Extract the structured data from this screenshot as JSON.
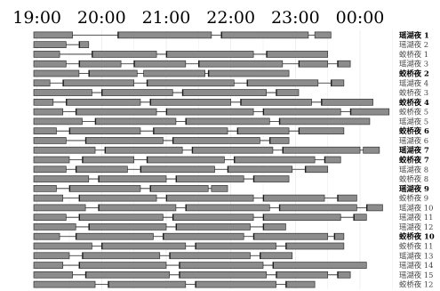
{
  "chart_data": {
    "type": "gantt",
    "x_axis": {
      "ticks": [
        "19:00",
        "20:00",
        "21:00",
        "22:00",
        "23:00",
        "00:00"
      ],
      "range_hours": [
        18.95,
        24.55
      ]
    },
    "colors": {
      "bar": "#8c8c8c",
      "outline": "#333333",
      "grid": "#e2e2e2"
    },
    "rows": [
      {
        "label": "瑶湖夜 1",
        "bold": true,
        "segments": [
          [
            18.95,
            19.55,
            "bar"
          ],
          [
            20.25,
            21.7,
            "bar"
          ],
          [
            21.85,
            23.2,
            "bar"
          ],
          [
            23.3,
            23.55,
            "hatch"
          ]
        ]
      },
      {
        "label": "瑶湖夜 2",
        "bold": false,
        "segments": [
          [
            18.95,
            19.45,
            "bar"
          ],
          [
            19.65,
            19.8,
            "bar"
          ]
        ]
      },
      {
        "label": "蛟桥夜 1",
        "bold": false,
        "segments": [
          [
            18.95,
            19.35,
            "bar"
          ],
          [
            19.85,
            20.85,
            "bar"
          ],
          [
            21.0,
            22.35,
            "bar"
          ],
          [
            22.55,
            23.5,
            "bar"
          ]
        ]
      },
      {
        "label": "瑶湖夜 3",
        "bold": false,
        "segments": [
          [
            18.95,
            19.45,
            "bar"
          ],
          [
            19.65,
            20.3,
            "bar"
          ],
          [
            20.5,
            21.3,
            "bar"
          ],
          [
            21.5,
            22.8,
            "bar"
          ],
          [
            23.05,
            23.5,
            "bar"
          ],
          [
            23.65,
            23.85,
            "bar"
          ]
        ]
      },
      {
        "label": "蛟桥夜 2",
        "bold": true,
        "segments": [
          [
            18.95,
            19.65,
            "bar"
          ],
          [
            19.8,
            20.55,
            "bar"
          ],
          [
            20.65,
            21.6,
            "hatch"
          ],
          [
            21.65,
            22.9,
            "bar"
          ]
        ]
      },
      {
        "label": "瑶湖夜 4",
        "bold": false,
        "segments": [
          [
            18.95,
            19.2,
            "bar"
          ],
          [
            19.4,
            20.5,
            "bar"
          ],
          [
            20.7,
            22.05,
            "bar"
          ],
          [
            22.25,
            23.35,
            "bar"
          ],
          [
            23.55,
            23.75,
            "bar"
          ]
        ]
      },
      {
        "label": "蛟桥夜 3",
        "bold": false,
        "segments": [
          [
            18.95,
            19.85,
            "bar"
          ],
          [
            20.0,
            21.1,
            "bar"
          ],
          [
            21.25,
            22.55,
            "bar"
          ],
          [
            22.7,
            23.05,
            "bar"
          ]
        ]
      },
      {
        "label": "蛟桥夜 4",
        "bold": true,
        "segments": [
          [
            18.95,
            19.25,
            "bar"
          ],
          [
            19.45,
            20.6,
            "bar"
          ],
          [
            20.75,
            22.0,
            "bar"
          ],
          [
            22.15,
            23.25,
            "bar"
          ],
          [
            23.4,
            24.2,
            "bar"
          ]
        ]
      },
      {
        "label": "蛟桥夜 5",
        "bold": false,
        "segments": [
          [
            18.95,
            19.4,
            "bar"
          ],
          [
            19.6,
            20.85,
            "bar"
          ],
          [
            21.0,
            22.35,
            "bar"
          ],
          [
            22.5,
            23.7,
            "bar"
          ],
          [
            23.85,
            24.45,
            "bar"
          ]
        ]
      },
      {
        "label": "瑶湖夜 5",
        "bold": false,
        "segments": [
          [
            18.95,
            19.7,
            "bar"
          ],
          [
            19.9,
            21.15,
            "bar"
          ],
          [
            21.3,
            22.6,
            "bar"
          ],
          [
            22.75,
            24.15,
            "bar"
          ]
        ]
      },
      {
        "label": "蛟桥夜 6",
        "bold": true,
        "segments": [
          [
            18.95,
            19.3,
            "bar"
          ],
          [
            19.5,
            20.6,
            "bar"
          ],
          [
            20.8,
            21.95,
            "bar"
          ],
          [
            22.1,
            22.9,
            "bar"
          ],
          [
            23.05,
            23.75,
            "bar"
          ]
        ]
      },
      {
        "label": "瑶湖夜 6",
        "bold": false,
        "segments": [
          [
            18.95,
            19.45,
            "bar"
          ],
          [
            19.75,
            20.95,
            "bar"
          ],
          [
            21.1,
            22.45,
            "bar"
          ],
          [
            22.6,
            22.9,
            "bar"
          ]
        ]
      },
      {
        "label": "瑶湖夜 7",
        "bold": true,
        "segments": [
          [
            18.95,
            19.9,
            "bar"
          ],
          [
            20.05,
            21.25,
            "bar"
          ],
          [
            21.4,
            22.65,
            "bar"
          ],
          [
            22.8,
            24.0,
            "bar"
          ],
          [
            24.05,
            24.3,
            "hatch"
          ]
        ]
      },
      {
        "label": "蛟桥夜 7",
        "bold": true,
        "segments": [
          [
            18.95,
            19.5,
            "bar"
          ],
          [
            19.7,
            20.5,
            "bar"
          ],
          [
            20.7,
            21.9,
            "bar"
          ],
          [
            22.05,
            23.3,
            "bar"
          ],
          [
            23.45,
            23.7,
            "bar"
          ]
        ]
      },
      {
        "label": "瑶湖夜 8",
        "bold": false,
        "segments": [
          [
            18.95,
            19.45,
            "bar"
          ],
          [
            19.6,
            20.4,
            "bar"
          ],
          [
            20.6,
            21.75,
            "bar"
          ],
          [
            21.95,
            22.95,
            "bar"
          ],
          [
            23.15,
            23.5,
            "bar"
          ]
        ]
      },
      {
        "label": "蛟桥夜 8",
        "bold": false,
        "segments": [
          [
            18.95,
            19.8,
            "bar"
          ],
          [
            19.95,
            21.0,
            "bar"
          ],
          [
            21.15,
            22.2,
            "bar"
          ],
          [
            22.35,
            22.9,
            "bar"
          ]
        ]
      },
      {
        "label": "瑶湖夜 9",
        "bold": true,
        "segments": [
          [
            18.95,
            19.3,
            "bar"
          ],
          [
            19.5,
            20.6,
            "bar"
          ],
          [
            20.75,
            21.65,
            "bar"
          ],
          [
            21.7,
            21.95,
            "hatch"
          ]
        ]
      },
      {
        "label": "蛟桥夜 9",
        "bold": false,
        "segments": [
          [
            18.95,
            19.4,
            "bar"
          ],
          [
            19.65,
            20.85,
            "bar"
          ],
          [
            21.0,
            22.35,
            "bar"
          ],
          [
            22.5,
            23.45,
            "bar"
          ],
          [
            23.65,
            23.95,
            "bar"
          ]
        ]
      },
      {
        "label": "瑶湖夜 10",
        "bold": false,
        "segments": [
          [
            18.95,
            19.75,
            "bar"
          ],
          [
            19.95,
            21.15,
            "bar"
          ],
          [
            21.3,
            22.6,
            "bar"
          ],
          [
            22.75,
            23.95,
            "bar"
          ],
          [
            24.1,
            24.35,
            "bar"
          ]
        ]
      },
      {
        "label": "瑶湖夜 11",
        "bold": false,
        "segments": [
          [
            18.95,
            19.45,
            "bar"
          ],
          [
            19.65,
            20.95,
            "bar"
          ],
          [
            21.1,
            22.35,
            "bar"
          ],
          [
            22.5,
            23.7,
            "bar"
          ],
          [
            23.9,
            24.1,
            "bar"
          ]
        ]
      },
      {
        "label": "瑶湖夜 12",
        "bold": false,
        "segments": [
          [
            18.95,
            19.6,
            "bar"
          ],
          [
            19.8,
            21.0,
            "bar"
          ],
          [
            21.15,
            22.3,
            "bar"
          ],
          [
            22.5,
            22.85,
            "bar"
          ]
        ]
      },
      {
        "label": "蛟桥夜 10",
        "bold": true,
        "segments": [
          [
            18.95,
            19.35,
            "bar"
          ],
          [
            19.6,
            20.8,
            "bar"
          ],
          [
            20.95,
            22.2,
            "bar"
          ],
          [
            22.35,
            23.5,
            "bar"
          ],
          [
            23.6,
            23.75,
            "bar"
          ]
        ]
      },
      {
        "label": "蛟桥夜 11",
        "bold": false,
        "segments": [
          [
            18.95,
            19.85,
            "bar"
          ],
          [
            20.0,
            21.3,
            "bar"
          ],
          [
            21.45,
            22.7,
            "bar"
          ],
          [
            22.85,
            23.75,
            "bar"
          ]
        ]
      },
      {
        "label": "瑶湖夜 13",
        "bold": false,
        "segments": [
          [
            18.95,
            19.5,
            "bar"
          ],
          [
            19.7,
            20.9,
            "bar"
          ],
          [
            21.05,
            22.3,
            "bar"
          ],
          [
            22.45,
            22.95,
            "bar"
          ]
        ]
      },
      {
        "label": "瑶湖夜 14",
        "bold": false,
        "segments": [
          [
            18.95,
            19.4,
            "bar"
          ],
          [
            19.65,
            21.0,
            "bar"
          ],
          [
            21.2,
            22.5,
            "bar"
          ],
          [
            22.65,
            24.1,
            "bar"
          ]
        ]
      },
      {
        "label": "瑶湖夜 15",
        "bold": false,
        "segments": [
          [
            18.95,
            19.55,
            "bar"
          ],
          [
            19.75,
            21.05,
            "bar"
          ],
          [
            21.2,
            22.55,
            "bar"
          ],
          [
            22.7,
            23.5,
            "bar"
          ],
          [
            23.65,
            23.85,
            "bar"
          ]
        ]
      },
      {
        "label": "蛟桥夜 12",
        "bold": false,
        "segments": [
          [
            18.95,
            19.9,
            "bar"
          ],
          [
            20.1,
            21.3,
            "bar"
          ],
          [
            21.45,
            22.7,
            "bar"
          ],
          [
            22.85,
            23.3,
            "bar"
          ]
        ]
      }
    ]
  }
}
